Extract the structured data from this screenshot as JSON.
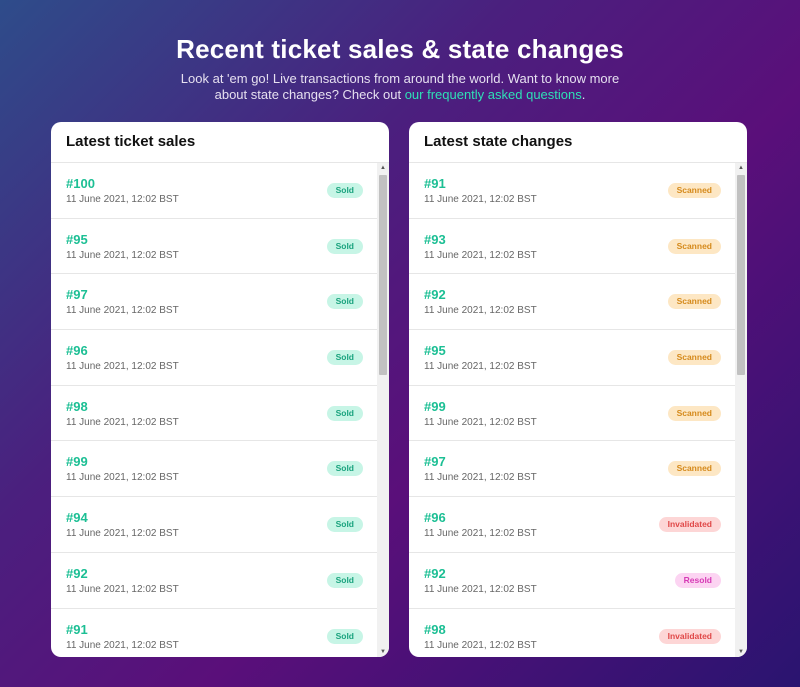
{
  "header": {
    "title": "Recent ticket sales & state changes",
    "subtitle_text": "Look at 'em go! Live transactions from around the world. Want to know more about state changes? Check out ",
    "subtitle_link": "our frequently asked questions",
    "subtitle_end": "."
  },
  "sales": {
    "title": "Latest ticket sales",
    "items": [
      {
        "num": "#100",
        "date": "11 June 2021, 12:02 BST",
        "status": "Sold"
      },
      {
        "num": "#95",
        "date": "11 June 2021, 12:02 BST",
        "status": "Sold"
      },
      {
        "num": "#97",
        "date": "11 June 2021, 12:02 BST",
        "status": "Sold"
      },
      {
        "num": "#96",
        "date": "11 June 2021, 12:02 BST",
        "status": "Sold"
      },
      {
        "num": "#98",
        "date": "11 June 2021, 12:02 BST",
        "status": "Sold"
      },
      {
        "num": "#99",
        "date": "11 June 2021, 12:02 BST",
        "status": "Sold"
      },
      {
        "num": "#94",
        "date": "11 June 2021, 12:02 BST",
        "status": "Sold"
      },
      {
        "num": "#92",
        "date": "11 June 2021, 12:02 BST",
        "status": "Sold"
      },
      {
        "num": "#91",
        "date": "11 June 2021, 12:02 BST",
        "status": "Sold"
      }
    ]
  },
  "changes": {
    "title": "Latest state changes",
    "items": [
      {
        "num": "#91",
        "date": "11 June 2021, 12:02 BST",
        "status": "Scanned"
      },
      {
        "num": "#93",
        "date": "11 June 2021, 12:02 BST",
        "status": "Scanned"
      },
      {
        "num": "#92",
        "date": "11 June 2021, 12:02 BST",
        "status": "Scanned"
      },
      {
        "num": "#95",
        "date": "11 June 2021, 12:02 BST",
        "status": "Scanned"
      },
      {
        "num": "#99",
        "date": "11 June 2021, 12:02 BST",
        "status": "Scanned"
      },
      {
        "num": "#97",
        "date": "11 June 2021, 12:02 BST",
        "status": "Scanned"
      },
      {
        "num": "#96",
        "date": "11 June 2021, 12:02 BST",
        "status": "Invalidated"
      },
      {
        "num": "#92",
        "date": "11 June 2021, 12:02 BST",
        "status": "Resold"
      },
      {
        "num": "#98",
        "date": "11 June 2021, 12:02 BST",
        "status": "Invalidated"
      }
    ]
  },
  "icons": {
    "scroll_up": "triangle-up-icon",
    "scroll_down": "triangle-down-icon"
  }
}
